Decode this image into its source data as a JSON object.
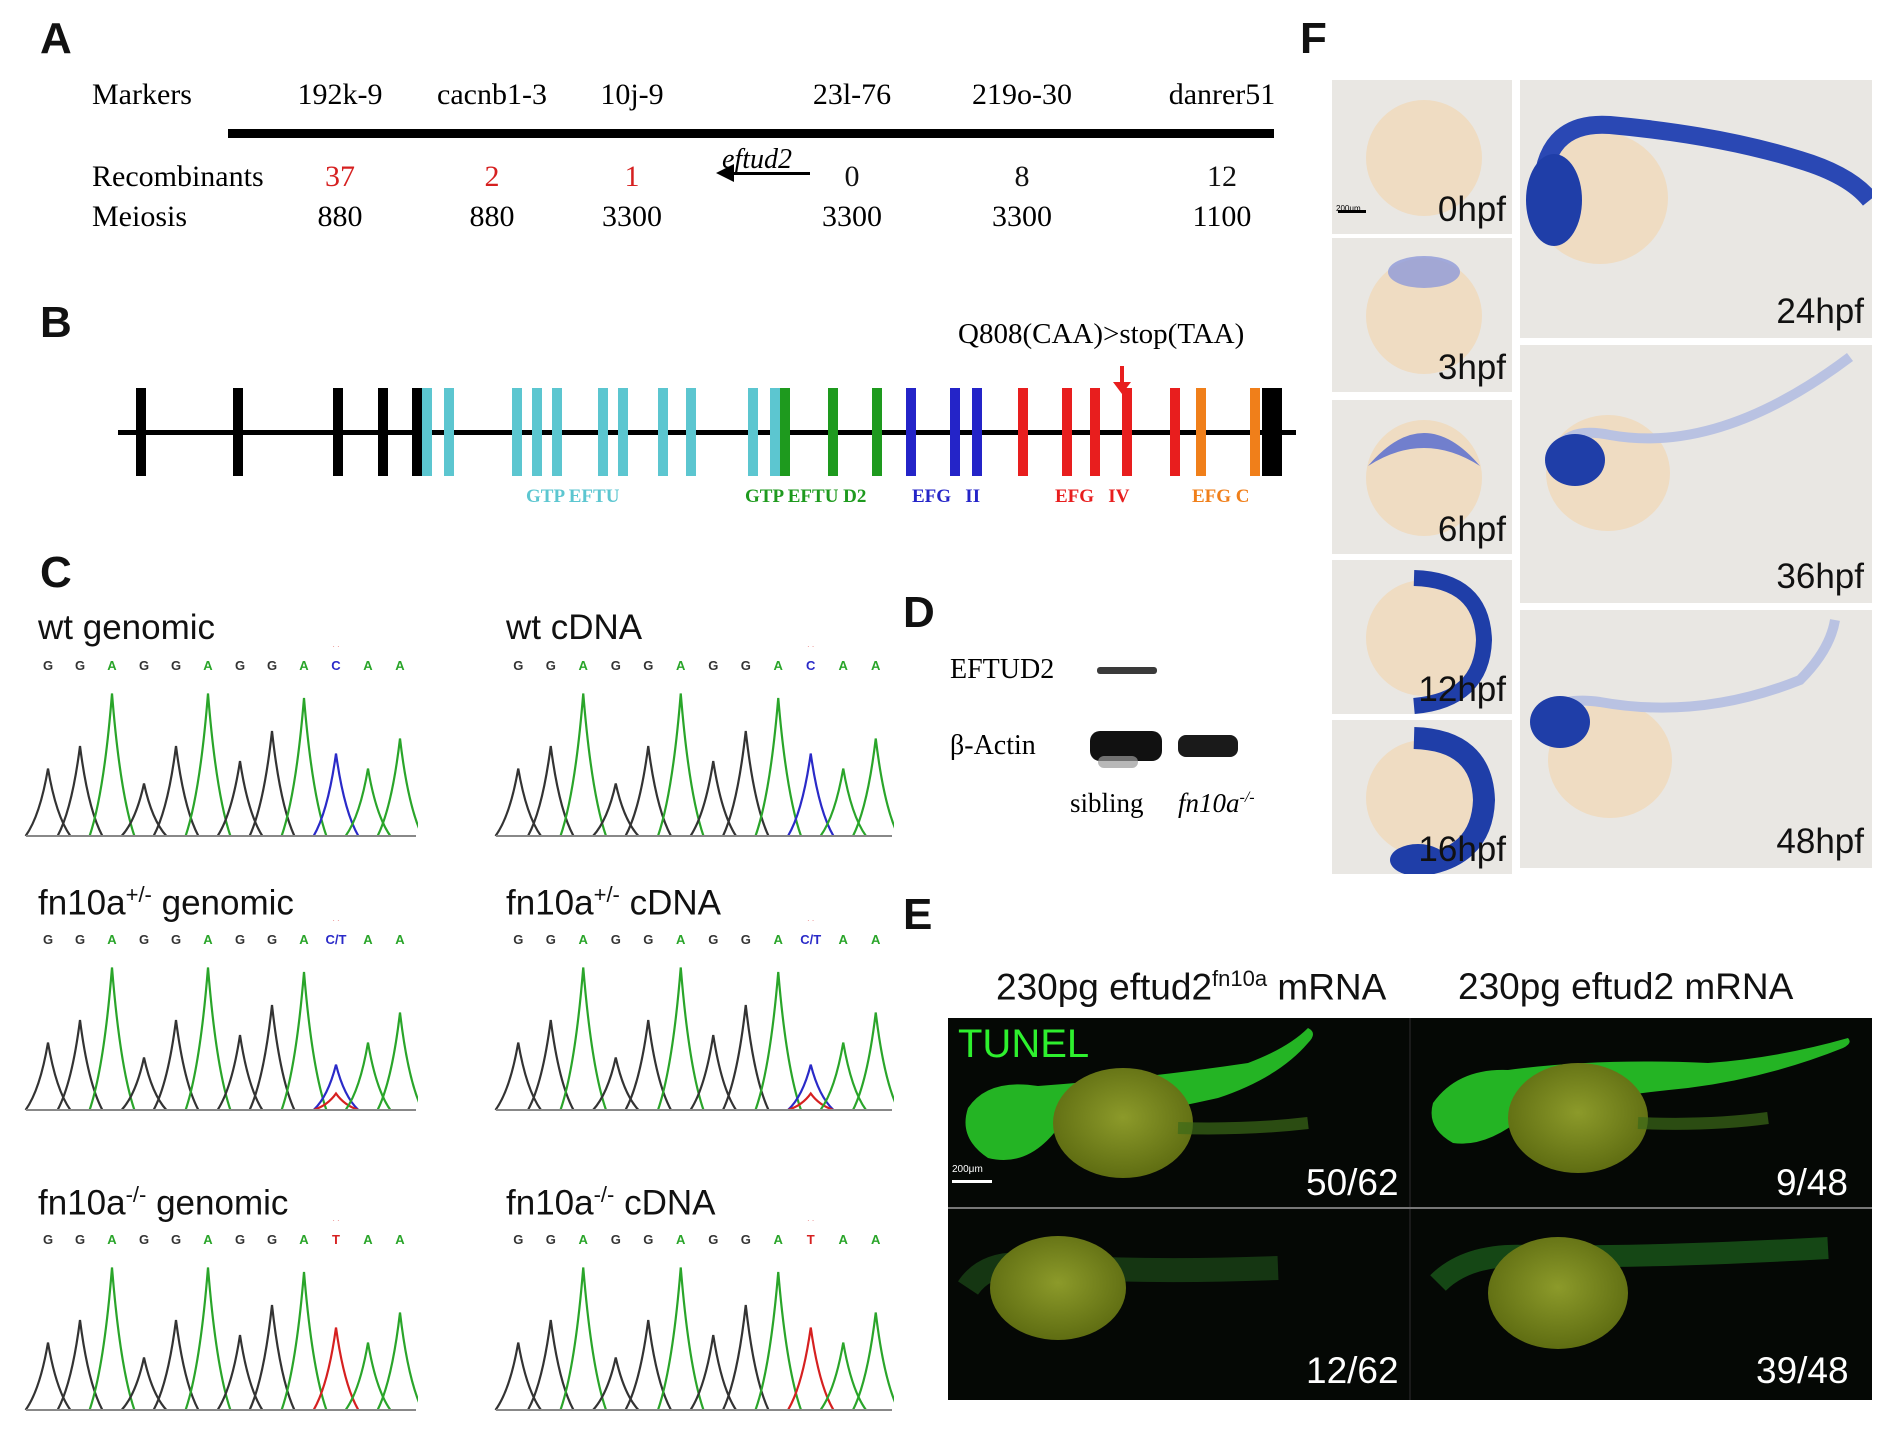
{
  "panels": {
    "A": "A",
    "B": "B",
    "C": "C",
    "D": "D",
    "E": "E",
    "F": "F"
  },
  "panelA": {
    "row_markers_label": "Markers",
    "row_recomb_label": "Recombinants",
    "row_meiosis_label": "Meiosis",
    "markers": [
      {
        "name": "192k-9",
        "recombinants": "37",
        "meiosis": "880"
      },
      {
        "name": "cacnb1-3",
        "recombinants": "2",
        "meiosis": "880"
      },
      {
        "name": "10j-9",
        "recombinants": "1",
        "meiosis": "3300"
      },
      {
        "name": "23l-76",
        "recombinants": "0",
        "meiosis": "3300"
      },
      {
        "name": "219o-30",
        "recombinants": "8",
        "meiosis": "3300"
      },
      {
        "name": "danrer51",
        "recombinants": "12",
        "meiosis": "1100"
      }
    ],
    "gene_label": "eftud2"
  },
  "panelB": {
    "mutation_label": "Q808(CAA)>stop(TAA)",
    "domains": [
      {
        "label": "GTP EFTU",
        "color": "#5cc6d0"
      },
      {
        "label": "GTP EFTU D2",
        "color": "#1e9a1e"
      },
      {
        "label": "EFG   II",
        "color": "#2424c8"
      },
      {
        "label": "EFG   IV",
        "color": "#e81e1e"
      },
      {
        "label": "EFG C",
        "color": "#f07f1a"
      }
    ]
  },
  "panelC": {
    "traces": [
      {
        "title": "wt genomic",
        "sup": "",
        "bases": [
          "G",
          "G",
          "A",
          "G",
          "G",
          "A",
          "G",
          "G",
          "A",
          "C",
          "A",
          "A"
        ]
      },
      {
        "title": "wt cDNA",
        "sup": "",
        "bases": [
          "G",
          "G",
          "A",
          "G",
          "G",
          "A",
          "G",
          "G",
          "A",
          "C",
          "A",
          "A"
        ]
      },
      {
        "title_pre": "fn10a",
        "sup": "+/-",
        "title_post": " genomic",
        "bases": [
          "G",
          "G",
          "A",
          "G",
          "G",
          "A",
          "G",
          "G",
          "A",
          "C/T",
          "A",
          "A"
        ]
      },
      {
        "title_pre": "fn10a",
        "sup": "+/-",
        "title_post": " cDNA",
        "bases": [
          "G",
          "G",
          "A",
          "G",
          "G",
          "A",
          "G",
          "G",
          "A",
          "C/T",
          "A",
          "A"
        ]
      },
      {
        "title_pre": "fn10a",
        "sup": "-/-",
        "title_post": " genomic",
        "bases": [
          "G",
          "G",
          "A",
          "G",
          "G",
          "A",
          "G",
          "G",
          "A",
          "T",
          "A",
          "A"
        ]
      },
      {
        "title_pre": "fn10a",
        "sup": "-/-",
        "title_post": " cDNA",
        "bases": [
          "G",
          "G",
          "A",
          "G",
          "G",
          "A",
          "G",
          "G",
          "A",
          "T",
          "A",
          "A"
        ]
      }
    ],
    "star": "*"
  },
  "panelD": {
    "row1": "EFTUD2",
    "row2": "β-Actin",
    "lane1": "sibling",
    "lane2_pre": "fn10a",
    "lane2_sup": "-/-"
  },
  "panelE": {
    "col1_pre": "230pg eftud2",
    "col1_sup": "fn10a",
    "col1_post": " mRNA",
    "col2": "230pg eftud2 mRNA",
    "stain": "TUNEL",
    "scale": "200μm",
    "counts": [
      "50/62",
      "9/48",
      "12/62",
      "39/48"
    ]
  },
  "panelF": {
    "scale": "200μm",
    "stages_left": [
      "0hpf",
      "3hpf",
      "6hpf",
      "12hpf",
      "16hpf"
    ],
    "stages_right": [
      "24hpf",
      "36hpf",
      "48hpf"
    ]
  }
}
